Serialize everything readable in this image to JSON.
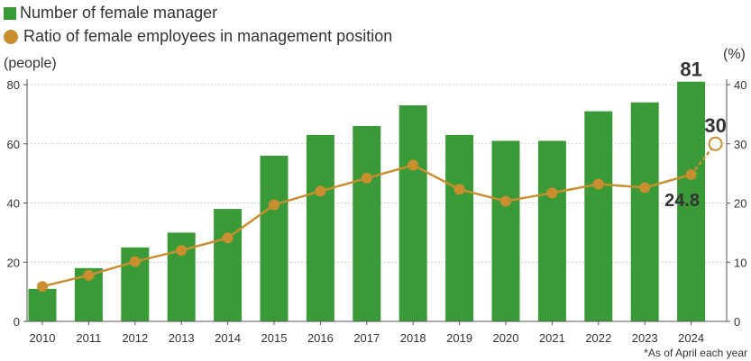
{
  "legend": {
    "bar_label": "Number of female manager",
    "line_label": "Ratio of female employees in management position"
  },
  "axes": {
    "left_unit": "(people)",
    "right_unit": "(%)"
  },
  "note": "*As of April each year",
  "colors": {
    "bar": "#3a9a37",
    "line": "#c98e2e",
    "axis": "#555555",
    "text": "#333333"
  },
  "chart_data": {
    "type": "bar",
    "categories": [
      "2010",
      "2011",
      "2012",
      "2013",
      "2014",
      "2015",
      "2016",
      "2017",
      "2018",
      "2019",
      "2020",
      "2021",
      "2022",
      "2023",
      "2024"
    ],
    "series": [
      {
        "name": "Number of female manager",
        "type": "bar",
        "axis": "left",
        "values": [
          11,
          18,
          25,
          30,
          38,
          56,
          63,
          66,
          73,
          63,
          61,
          61,
          71,
          74,
          81
        ]
      },
      {
        "name": "Ratio of female employees in management position",
        "type": "line",
        "axis": "right",
        "values": [
          5.9,
          7.8,
          10.1,
          12.0,
          14.1,
          19.7,
          22.0,
          24.2,
          26.4,
          22.3,
          20.3,
          21.7,
          23.2,
          22.6,
          24.8
        ],
        "projection": {
          "x": "2024.5",
          "value": 30
        }
      }
    ],
    "ylim_left": [
      0,
      80
    ],
    "yticks_left": [
      0,
      20,
      40,
      60,
      80
    ],
    "ylim_right": [
      0,
      40
    ],
    "yticks_right": [
      0,
      10,
      20,
      30,
      40
    ],
    "annotations": {
      "bar_2024": "81",
      "line_2024": "24.8",
      "target": "30"
    }
  }
}
